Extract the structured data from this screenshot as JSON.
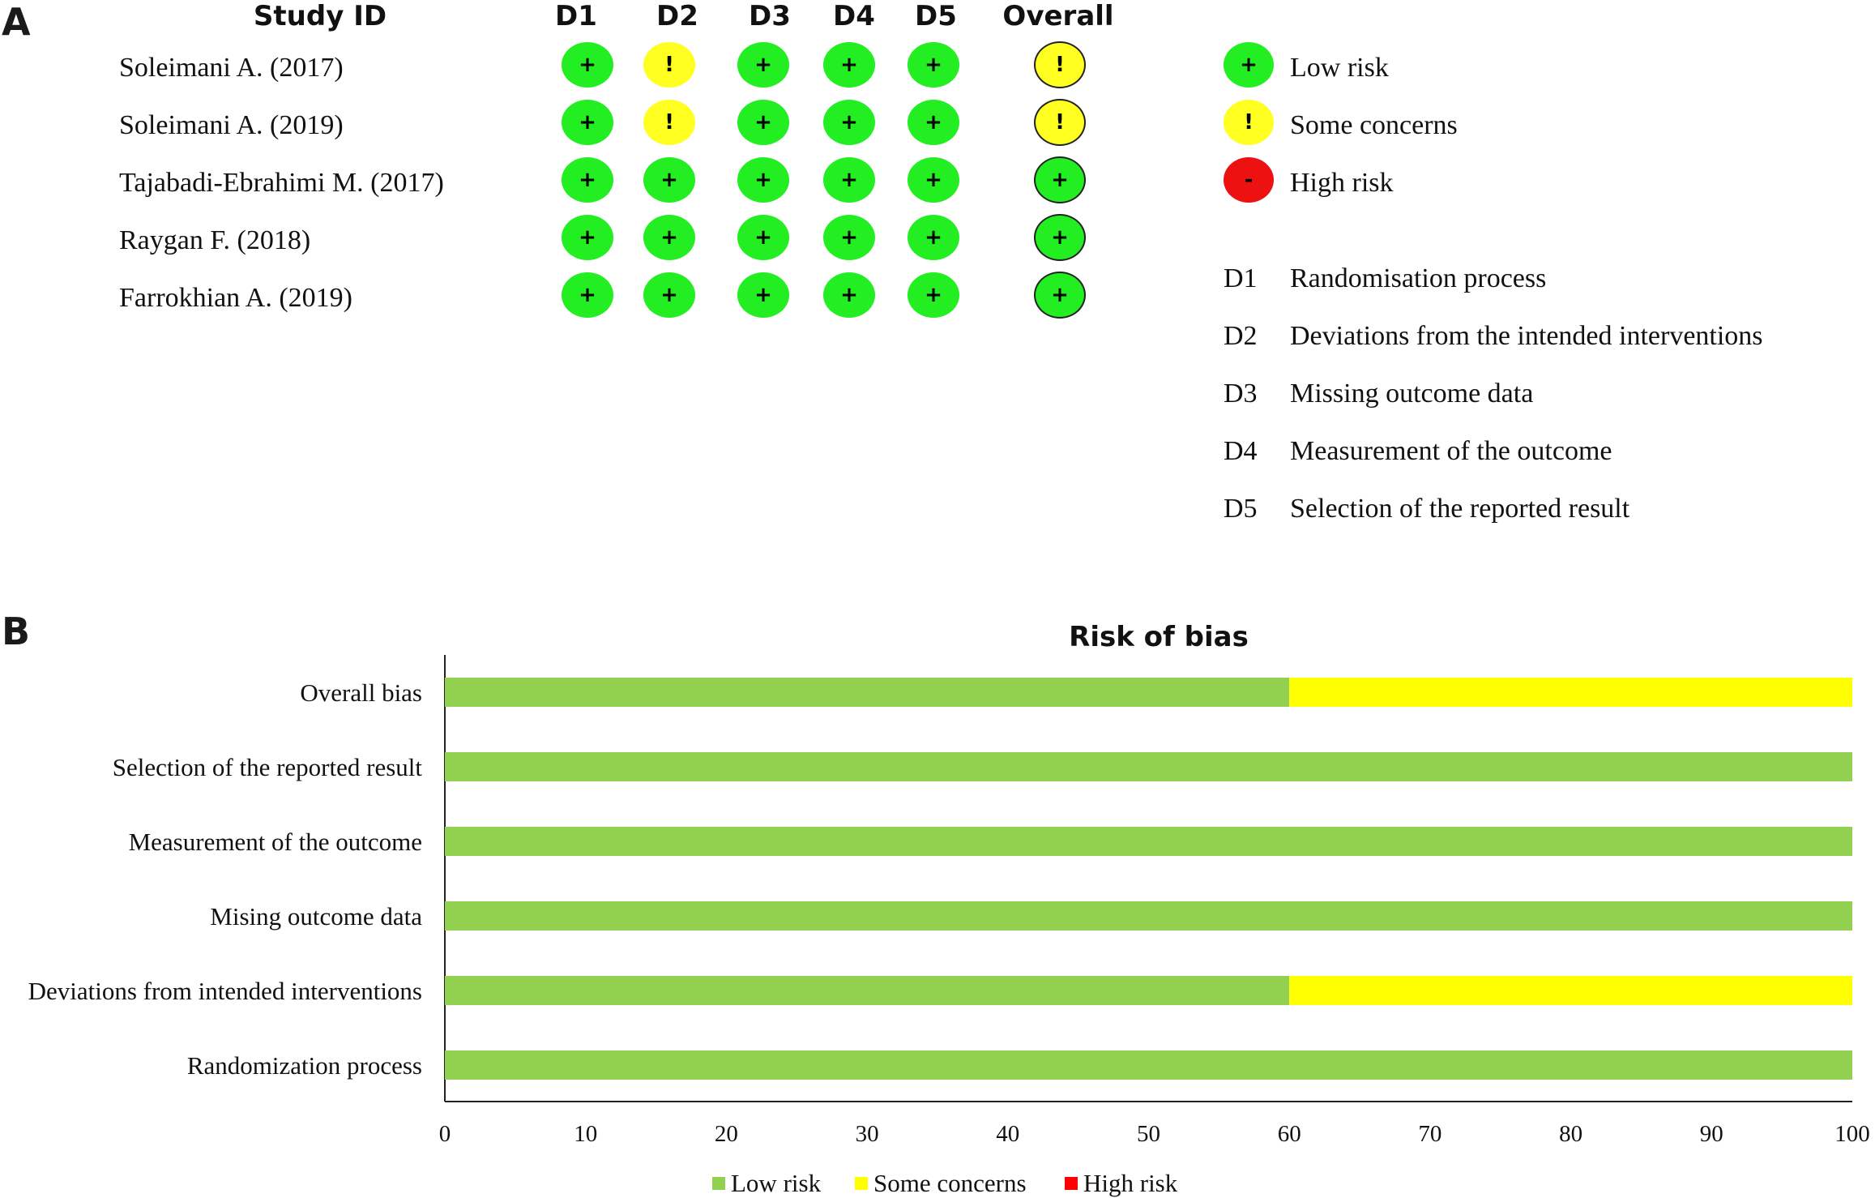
{
  "panelA": {
    "letter": "A",
    "headers": {
      "study": "Study ID",
      "d1": "D1",
      "d2": "D2",
      "d3": "D3",
      "d4": "D4",
      "d5": "D5",
      "overall": "Overall"
    },
    "rows": [
      {
        "study": "Soleimani A. (2017)",
        "judgements": [
          "low",
          "some",
          "low",
          "low",
          "low"
        ],
        "overall": "some"
      },
      {
        "study": "Soleimani A. (2019)",
        "judgements": [
          "low",
          "some",
          "low",
          "low",
          "low"
        ],
        "overall": "some"
      },
      {
        "study": "Tajabadi-Ebrahimi M. (2017)",
        "judgements": [
          "low",
          "low",
          "low",
          "low",
          "low"
        ],
        "overall": "low"
      },
      {
        "study": "Raygan F. (2018)",
        "judgements": [
          "low",
          "low",
          "low",
          "low",
          "low"
        ],
        "overall": "low"
      },
      {
        "study": "Farrokhian A. (2019)",
        "judgements": [
          "low",
          "low",
          "low",
          "low",
          "low"
        ],
        "overall": "low"
      }
    ],
    "symbols": {
      "low": "+",
      "some": "!",
      "high": "-"
    },
    "colors": {
      "low": "#22ee22",
      "some": "#ffff22",
      "high": "#ee1111"
    },
    "legend": {
      "low": "Low risk",
      "some": "Some concerns",
      "high": "High risk"
    },
    "domains": [
      {
        "code": "D1",
        "text": "Randomisation process"
      },
      {
        "code": "D2",
        "text": "Deviations from the intended interventions"
      },
      {
        "code": "D3",
        "text": "Missing outcome data"
      },
      {
        "code": "D4",
        "text": "Measurement of the outcome"
      },
      {
        "code": "D5",
        "text": "Selection of the reported result"
      }
    ]
  },
  "panelB": {
    "letter": "B"
  },
  "chart_data": {
    "type": "bar",
    "orientation": "horizontal",
    "stacked": true,
    "title": "Risk of bias",
    "categories": [
      "Overall  bias",
      "Selection of the reported result",
      "Measurement of the outcome",
      "Mising outcome data",
      "Deviations from intended interventions",
      "Randomization process"
    ],
    "series": [
      {
        "name": "Low risk",
        "color": "#92d050",
        "values": [
          60,
          100,
          100,
          100,
          60,
          100
        ]
      },
      {
        "name": "Some concerns",
        "color": "#ffff00",
        "values": [
          40,
          0,
          0,
          0,
          40,
          0
        ]
      },
      {
        "name": "High risk",
        "color": "#ff0000",
        "values": [
          0,
          0,
          0,
          0,
          0,
          0
        ]
      }
    ],
    "xlim": [
      0,
      100
    ],
    "xticks": [
      "0",
      "10",
      "20",
      "30",
      "40",
      "50",
      "60",
      "70",
      "80",
      "90",
      "100"
    ],
    "grid": false,
    "legend_position": "bottom"
  }
}
